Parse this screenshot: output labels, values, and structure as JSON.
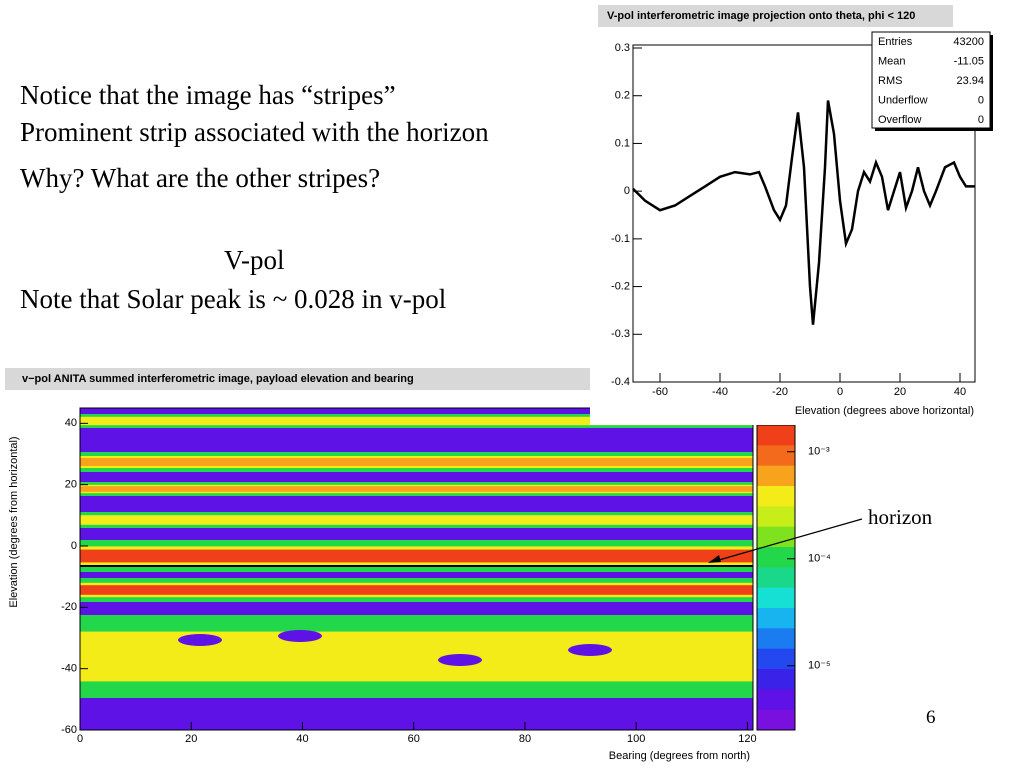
{
  "slide": {
    "lines": [
      "Notice that the image has “stripes”",
      "Prominent strip associated with the horizon",
      "Why?  What are the other stripes?",
      "V-pol",
      "Note that Solar peak is ~ 0.028 in v-pol"
    ],
    "annotation": "horizon",
    "page_number": "6"
  },
  "chart_data": [
    {
      "type": "line",
      "title": "V-pol interferometric image projection onto theta, phi < 120",
      "xlabel": "Elevation (degrees above horizontal)",
      "x": [
        -69,
        -65,
        -60,
        -55,
        -50,
        -45,
        -40,
        -35,
        -30,
        -27,
        -25,
        -22,
        -20,
        -18,
        -16,
        -14,
        -12,
        -10,
        -9,
        -7,
        -5,
        -4,
        -2,
        0,
        2,
        4,
        6,
        8,
        10,
        12,
        14,
        16,
        18,
        20,
        22,
        24,
        26,
        28,
        30,
        32,
        35,
        38,
        40,
        42,
        45
      ],
      "values": [
        0.005,
        -0.02,
        -0.04,
        -0.03,
        -0.01,
        0.01,
        0.03,
        0.04,
        0.035,
        0.04,
        0.01,
        -0.04,
        -0.06,
        -0.03,
        0.07,
        0.165,
        0.05,
        -0.2,
        -0.28,
        -0.15,
        0.05,
        0.19,
        0.12,
        -0.02,
        -0.11,
        -0.08,
        0.0,
        0.04,
        0.02,
        0.06,
        0.03,
        -0.04,
        0.0,
        0.04,
        -0.035,
        0.0,
        0.05,
        0.0,
        -0.03,
        0.0,
        0.05,
        0.06,
        0.03,
        0.01,
        0.01
      ],
      "color": "#000000",
      "xlim": [
        -69,
        45
      ],
      "ylim": [
        -0.4,
        0.3
      ],
      "xticks": [
        -60,
        -40,
        -20,
        0,
        20,
        40
      ],
      "yticks": [
        -0.4,
        -0.3,
        -0.2,
        -0.1,
        0,
        0.1,
        0.2,
        0.3
      ],
      "stats": [
        [
          "Entries",
          "43200"
        ],
        [
          "Mean",
          "-11.05"
        ],
        [
          "RMS",
          "23.94"
        ],
        [
          "Underflow",
          "0"
        ],
        [
          "Overflow",
          "0"
        ]
      ]
    },
    {
      "type": "heatmap",
      "title": "v−pol ANITA summed interferometric image, payload elevation and bearing",
      "xlabel": "Bearing (degrees from north)",
      "ylabel": "Elevation (degrees from horizontal)",
      "xlim": [
        0,
        121
      ],
      "ylim": [
        -60,
        45
      ],
      "xticks": [
        0,
        20,
        40,
        60,
        80,
        100,
        120
      ],
      "yticks": [
        -60,
        -40,
        -20,
        0,
        20,
        40
      ],
      "colorbar": {
        "scale": "log",
        "ticks": [
          {
            "value": 0.001,
            "label": "10⁻³"
          },
          {
            "value": 0.0001,
            "label": "10⁻⁴"
          },
          {
            "value": 1e-05,
            "label": "10⁻⁵"
          }
        ]
      }
    }
  ]
}
